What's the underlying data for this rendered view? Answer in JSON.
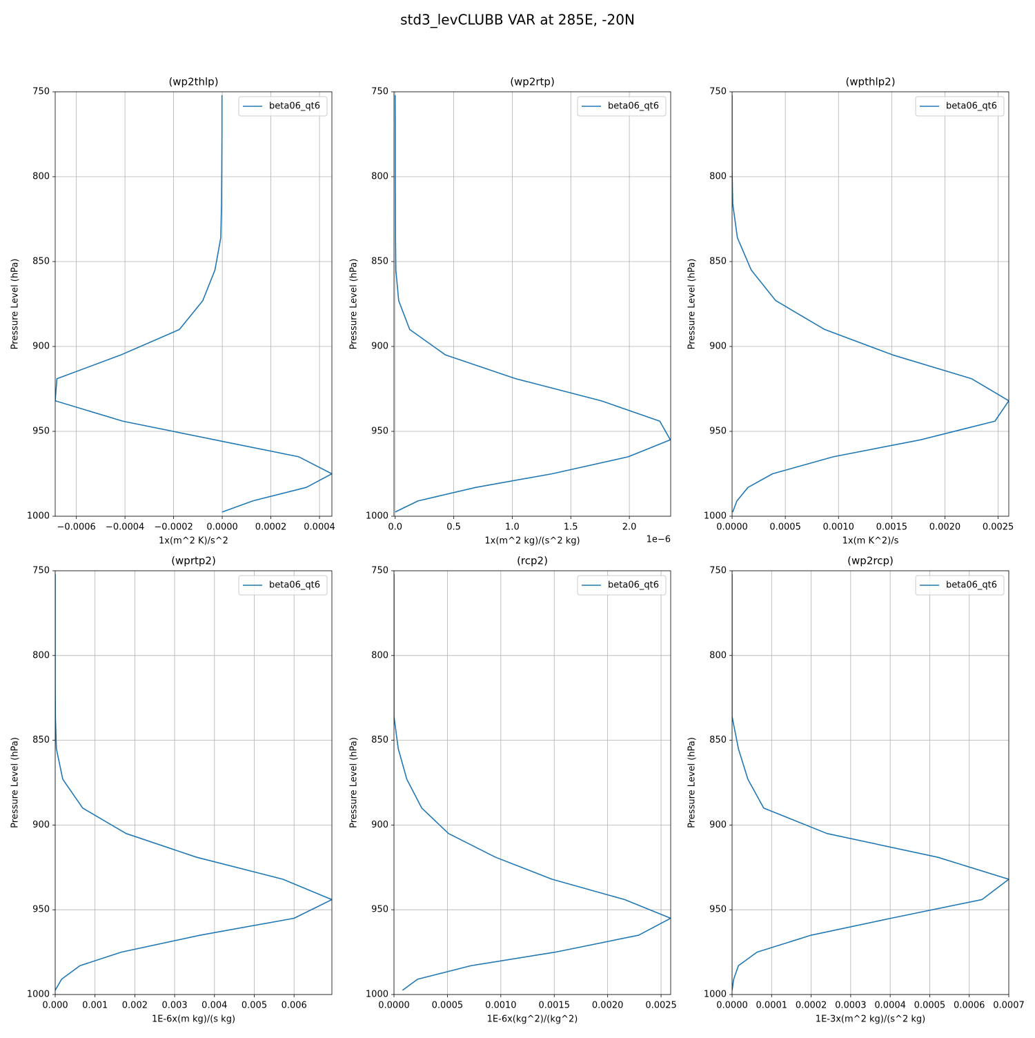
{
  "title": "std3_levCLUBB VAR at 285E, -20N",
  "chart_data": [
    {
      "type": "line",
      "title": "(wp2thlp)",
      "x_label": "1x(m^2 K)/s^2",
      "y_label": "Pressure Level (hPa)",
      "grid": true,
      "legend": "upper right",
      "y_inverted": true,
      "y": [
        997.5,
        991,
        983,
        975,
        965,
        955,
        944,
        932,
        919,
        905,
        890,
        873,
        855,
        836,
        816,
        796,
        774,
        752
      ],
      "series": [
        {
          "name": "beta06_qt6",
          "color": "#1f77b4",
          "values": [
            0,
            0.000125,
            0.000346,
            0.000451,
            0.000315,
            -3e-05,
            -0.000409,
            -0.000687,
            -0.00068,
            -0.000417,
            -0.000176,
            -8e-05,
            -3e-05,
            -6e-06,
            -3e-06,
            -2e-06,
            -1e-06,
            -1e-06
          ]
        }
      ],
      "xlim": [
        -0.000687,
        0.000451
      ],
      "ylim": [
        750,
        1000
      ],
      "xticks": [
        {
          "value": -0.0006,
          "label": "−0.0006"
        },
        {
          "value": -0.0004,
          "label": "−0.0004"
        },
        {
          "value": -0.0002,
          "label": "−0.0002"
        },
        {
          "value": 0,
          "label": "0.0000"
        },
        {
          "value": 0.0002,
          "label": "0.0002"
        },
        {
          "value": 0.0004,
          "label": "0.0004"
        }
      ],
      "yticks": [
        750,
        800,
        850,
        900,
        950,
        1000
      ]
    },
    {
      "type": "line",
      "title": "(wp2rtp)",
      "x_label": "1x(m^2 kg)/(s^2 kg)",
      "x_offset_label": "1e−6",
      "y_label": "Pressure Level (hPa)",
      "grid": true,
      "legend": "upper right",
      "y_inverted": true,
      "y": [
        997.5,
        991,
        983,
        975,
        965,
        955,
        944,
        932,
        919,
        905,
        890,
        873,
        855,
        836,
        816,
        796,
        774,
        752
      ],
      "series": [
        {
          "name": "beta06_qt6",
          "color": "#1f77b4",
          "values": [
            0,
            1.94e-07,
            6.9e-07,
            1.34e-06,
            1.99e-06,
            2.35e-06,
            2.26e-06,
            1.76e-06,
            1.03e-06,
            4.3e-07,
            1.24e-07,
            3e-08,
            6e-09,
            3e-09,
            2e-09,
            1e-09,
            1e-09,
            0
          ]
        }
      ],
      "xlim": [
        -1e-08,
        2.353e-06
      ],
      "ylim": [
        750,
        1000
      ],
      "xticks": [
        {
          "value": 0,
          "label": "0.0"
        },
        {
          "value": 5e-07,
          "label": "0.5"
        },
        {
          "value": 1e-06,
          "label": "1.0"
        },
        {
          "value": 1.5e-06,
          "label": "1.5"
        },
        {
          "value": 2e-06,
          "label": "2.0"
        }
      ],
      "yticks": [
        750,
        800,
        850,
        900,
        950,
        1000
      ]
    },
    {
      "type": "line",
      "title": "(wpthlp2)",
      "x_label": "1x(m K^2)/s",
      "y_label": "Pressure Level (hPa)",
      "grid": true,
      "legend": "upper right",
      "y_inverted": true,
      "y": [
        997.5,
        991,
        983,
        975,
        965,
        955,
        944,
        932,
        919,
        905,
        890,
        873,
        855,
        836,
        816,
        796,
        774,
        752
      ],
      "series": [
        {
          "name": "beta06_qt6",
          "color": "#1f77b4",
          "values": [
            6e-06,
            4.5e-05,
            0.00015,
            0.00038,
            0.00095,
            0.00177,
            0.00247,
            0.0026,
            0.00225,
            0.00151,
            0.00087,
            0.00041,
            0.00018,
            5e-05,
            6e-06,
            0,
            0,
            0
          ]
        }
      ],
      "xlim": [
        0,
        0.0026
      ],
      "ylim": [
        750,
        1000
      ],
      "xticks": [
        {
          "value": 0,
          "label": "0.0000"
        },
        {
          "value": 0.0005,
          "label": "0.0005"
        },
        {
          "value": 0.001,
          "label": "0.0010"
        },
        {
          "value": 0.0015,
          "label": "0.0015"
        },
        {
          "value": 0.002,
          "label": "0.0020"
        },
        {
          "value": 0.0025,
          "label": "0.0025"
        }
      ],
      "yticks": [
        750,
        800,
        850,
        900,
        950,
        1000
      ]
    },
    {
      "type": "line",
      "title": "(wprtp2)",
      "x_label": "1E-6x(m kg)/(s kg)",
      "y_label": "Pressure Level (hPa)",
      "grid": true,
      "legend": "upper right",
      "y_inverted": true,
      "y": [
        997.5,
        991,
        983,
        975,
        965,
        955,
        944,
        932,
        919,
        905,
        890,
        873,
        855,
        836,
        816,
        796,
        774,
        752
      ],
      "series": [
        {
          "name": "beta06_qt6",
          "color": "#1f77b4",
          "values": [
            0,
            0.00016,
            0.00062,
            0.00166,
            0.00364,
            0.006,
            0.00695,
            0.00572,
            0.00355,
            0.00178,
            0.00069,
            0.00019,
            3e-05,
            5e-06,
            0,
            0,
            0,
            0
          ]
        }
      ],
      "xlim": [
        0,
        0.00695
      ],
      "ylim": [
        750,
        1000
      ],
      "xticks": [
        {
          "value": 0,
          "label": "0.000"
        },
        {
          "value": 0.001,
          "label": "0.001"
        },
        {
          "value": 0.002,
          "label": "0.002"
        },
        {
          "value": 0.003,
          "label": "0.003"
        },
        {
          "value": 0.004,
          "label": "0.004"
        },
        {
          "value": 0.005,
          "label": "0.005"
        },
        {
          "value": 0.006,
          "label": "0.006"
        }
      ],
      "yticks": [
        750,
        800,
        850,
        900,
        950,
        1000
      ]
    },
    {
      "type": "line",
      "title": "(rcp2)",
      "x_label": "1E-6x(kg^2)/(kg^2)",
      "y_label": "Pressure Level (hPa)",
      "grid": true,
      "legend": "upper right",
      "y_inverted": true,
      "y": [
        997.5,
        991,
        983,
        975,
        965,
        955,
        944,
        932,
        919,
        905,
        890,
        873,
        855,
        836,
        816,
        796,
        774,
        752
      ],
      "series": [
        {
          "name": "beta06_qt6",
          "color": "#1f77b4",
          "values": [
            8e-05,
            0.00022,
            0.00072,
            0.00151,
            0.00229,
            0.00259,
            0.00216,
            0.00148,
            0.00095,
            0.00051,
            0.00026,
            0.00012,
            4e-05,
            0,
            0,
            0,
            0,
            0
          ]
        }
      ],
      "xlim": [
        0,
        0.00259
      ],
      "ylim": [
        750,
        1000
      ],
      "xticks": [
        {
          "value": 0,
          "label": "0.0000"
        },
        {
          "value": 0.0005,
          "label": "0.0005"
        },
        {
          "value": 0.001,
          "label": "0.0010"
        },
        {
          "value": 0.0015,
          "label": "0.0015"
        },
        {
          "value": 0.002,
          "label": "0.0020"
        },
        {
          "value": 0.0025,
          "label": "0.0025"
        }
      ],
      "yticks": [
        750,
        800,
        850,
        900,
        950,
        1000
      ]
    },
    {
      "type": "line",
      "title": "(wp2rcp)",
      "x_label": "1E-3x(m^2 kg)/(s^2 kg)",
      "y_label": "Pressure Level (hPa)",
      "grid": true,
      "legend": "upper right",
      "y_inverted": true,
      "y": [
        997.5,
        991,
        983,
        975,
        965,
        955,
        944,
        932,
        919,
        905,
        890,
        873,
        855,
        836,
        816,
        796,
        774,
        752
      ],
      "series": [
        {
          "name": "beta06_qt6",
          "color": "#1f77b4",
          "values": [
            0,
            4e-06,
            1.6e-05,
            6.3e-05,
            0.0002,
            0.000402,
            0.000632,
            0.0007,
            0.00052,
            0.00024,
            8e-05,
            4e-05,
            1.6e-05,
            0,
            0,
            0,
            0,
            0
          ]
        }
      ],
      "xlim": [
        0,
        0.0007
      ],
      "ylim": [
        750,
        1000
      ],
      "xticks": [
        {
          "value": 0,
          "label": "0.0000"
        },
        {
          "value": 0.0001,
          "label": "0.0001"
        },
        {
          "value": 0.0002,
          "label": "0.0002"
        },
        {
          "value": 0.0003,
          "label": "0.0003"
        },
        {
          "value": 0.0004,
          "label": "0.0004"
        },
        {
          "value": 0.0005,
          "label": "0.0005"
        },
        {
          "value": 0.0006,
          "label": "0.0006"
        },
        {
          "value": 0.0007,
          "label": "0.0007"
        }
      ],
      "yticks": [
        750,
        800,
        850,
        900,
        950,
        1000
      ]
    }
  ]
}
